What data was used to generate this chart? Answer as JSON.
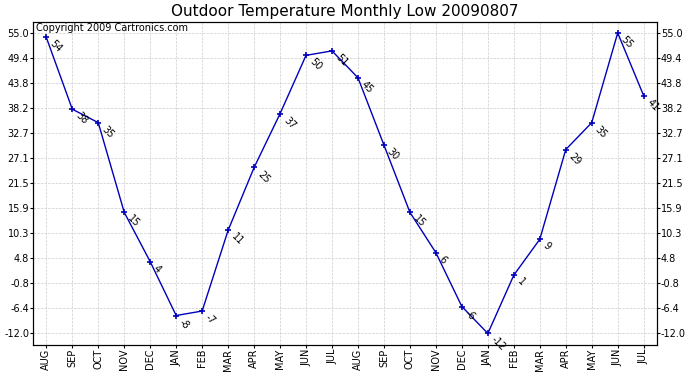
{
  "title": "Outdoor Temperature Monthly Low 20090807",
  "copyright_text": "Copyright 2009 Cartronics.com",
  "months": [
    "AUG",
    "SEP",
    "OCT",
    "NOV",
    "DEC",
    "JAN",
    "FEB",
    "MAR",
    "APR",
    "MAY",
    "JUN",
    "JUL",
    "AUG",
    "SEP",
    "OCT",
    "NOV",
    "DEC",
    "JAN",
    "FEB",
    "MAR",
    "APR",
    "MAY",
    "JUN",
    "JUL"
  ],
  "values": [
    54,
    38,
    35,
    15,
    4,
    -8,
    -7,
    11,
    25,
    37,
    50,
    51,
    45,
    30,
    15,
    6,
    -6,
    -12,
    1,
    9,
    29,
    35,
    55,
    41
  ],
  "line_color": "#0000BB",
  "marker_color": "#0000BB",
  "bg_color": "#FFFFFF",
  "plot_bg_color": "#FFFFFF",
  "grid_color": "#CCCCCC",
  "yticks": [
    55.0,
    49.4,
    43.8,
    38.2,
    32.7,
    27.1,
    21.5,
    15.9,
    10.3,
    4.8,
    -0.8,
    -6.4,
    -12.0
  ],
  "ylim": [
    -14.5,
    57.5
  ],
  "title_fontsize": 11,
  "label_fontsize": 7,
  "tick_fontsize": 7,
  "copyright_fontsize": 7
}
